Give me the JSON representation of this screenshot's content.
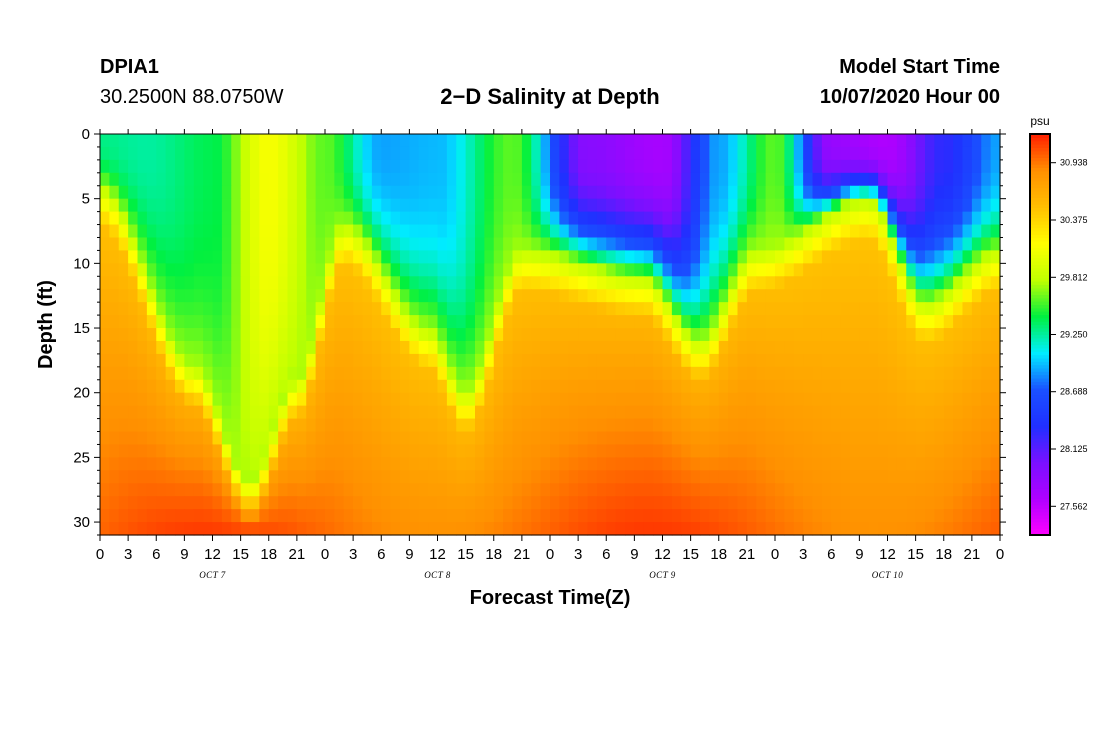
{
  "header": {
    "station_id": "DPIA1",
    "coordinates": "30.2500N 88.0750W",
    "title": "2−D Salinity at Depth",
    "start_time_label": "Model Start Time",
    "start_time_value": "10/07/2020 Hour 00"
  },
  "chart_data": {
    "type": "heatmap",
    "title": "2−D Salinity at Depth",
    "xlabel": "Forecast Time(Z)",
    "ylabel": "Depth (ft)",
    "x_tick_labels": [
      "0",
      "3",
      "6",
      "9",
      "12",
      "15",
      "18",
      "21",
      "0",
      "3",
      "6",
      "9",
      "12",
      "15",
      "18",
      "21",
      "0",
      "3",
      "6",
      "9",
      "12",
      "15",
      "18",
      "21",
      "0",
      "3",
      "6",
      "9",
      "12",
      "15",
      "18",
      "21",
      "0"
    ],
    "date_labels": [
      {
        "text": "OCT 7",
        "hour": 12
      },
      {
        "text": "OCT 8",
        "hour": 36
      },
      {
        "text": "OCT 9",
        "hour": 60
      },
      {
        "text": "OCT 10",
        "hour": 84
      }
    ],
    "xlim_hours": [
      0,
      96
    ],
    "ylim_ft": [
      0,
      31
    ],
    "y_ticks": [
      0,
      5,
      10,
      15,
      20,
      25,
      30
    ],
    "colorbar": {
      "unit": "psu",
      "range": [
        27.28,
        31.22
      ],
      "tick_values": [
        30.938,
        30.375,
        29.812,
        29.25,
        28.688,
        28.125,
        27.562
      ],
      "tick_labels": [
        "30.938",
        "30.375",
        "29.812",
        "29.250",
        "28.688",
        "28.125",
        "27.562"
      ],
      "colors_low_to_high": [
        "#ff00ff",
        "#b000ff",
        "#7a10ff",
        "#2030ff",
        "#1a50ff",
        "#00eeff",
        "#00f040",
        "#c0ff00",
        "#ffff00",
        "#ffc000",
        "#ff9000",
        "#ff2000"
      ]
    },
    "trough_depth_ft": {
      "hours": [
        0,
        10,
        16,
        21,
        26,
        35,
        39,
        45,
        58,
        64,
        70,
        82,
        88,
        96
      ],
      "values": [
        4,
        18,
        27,
        19,
        7,
        15,
        20,
        9,
        11,
        16,
        9,
        5,
        13,
        9
      ]
    },
    "surface_salinity_psu": {
      "hours": [
        0,
        5,
        12,
        18,
        24,
        30,
        36,
        44,
        52,
        60,
        66,
        72,
        78,
        84,
        90,
        96
      ],
      "values": [
        29.3,
        29.25,
        29.4,
        30.1,
        29.6,
        28.9,
        28.95,
        29.6,
        27.9,
        27.7,
        28.9,
        29.6,
        27.8,
        27.65,
        28.3,
        28.9
      ]
    }
  }
}
